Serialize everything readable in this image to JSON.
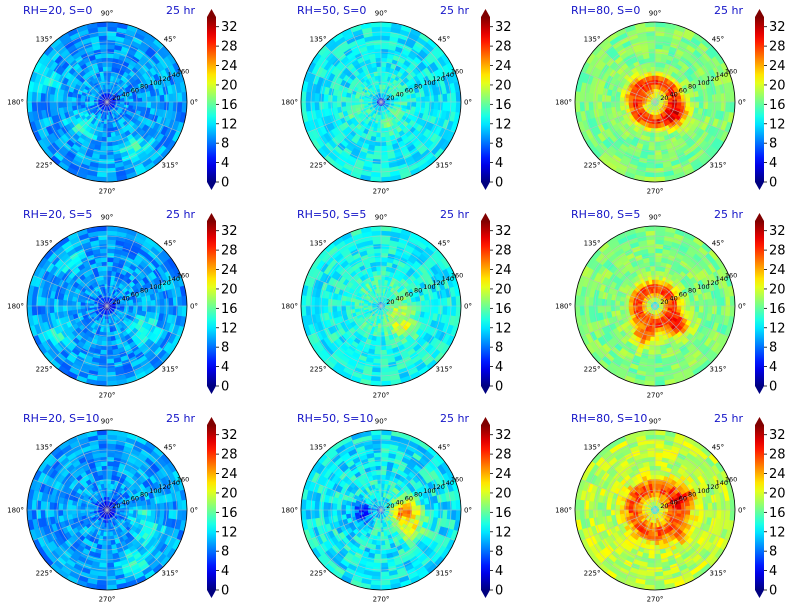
{
  "colors": {
    "title": "#1515c8",
    "colormap": "jet",
    "grid": "#bfbfbf"
  },
  "figure_info": {
    "time_label": "25 hr"
  },
  "chart_data": [
    {
      "type": "heatmap",
      "title": "RH=20, S=0",
      "time": "25 hr",
      "projection": "polar",
      "grid": true,
      "angle_ticks": [
        "90°",
        "45°",
        "0°",
        "315°",
        "270°",
        "225°",
        "180°",
        "135°"
      ],
      "radial_ticks": [
        20,
        40,
        60,
        80,
        100,
        120,
        140,
        160
      ],
      "rlim": [
        0,
        160
      ],
      "colorbar": {
        "ticks": [
          0,
          4,
          8,
          12,
          16,
          20,
          24,
          28,
          32
        ],
        "range": [
          0,
          34
        ]
      },
      "field": {
        "background": 9.5,
        "noise": 2.5,
        "center_value": 2,
        "center_radius": 22,
        "ring_value": 9.5,
        "ring_radius": 50,
        "ring_width": 30,
        "hotspots": [
          {
            "r": 70,
            "theta": 225,
            "value": 14
          },
          {
            "r": 110,
            "theta": 300,
            "value": 15
          },
          {
            "r": 130,
            "theta": 160,
            "value": 14
          }
        ]
      }
    },
    {
      "type": "heatmap",
      "title": "RH=50, S=0",
      "time": "25 hr",
      "projection": "polar",
      "grid": true,
      "angle_ticks": [
        "90°",
        "45°",
        "0°",
        "315°",
        "270°",
        "225°",
        "180°",
        "135°"
      ],
      "radial_ticks": [
        20,
        40,
        60,
        80,
        100,
        120,
        140,
        160
      ],
      "rlim": [
        0,
        160
      ],
      "colorbar": {
        "ticks": [
          0,
          4,
          8,
          12,
          16,
          20,
          24,
          28,
          32
        ],
        "range": [
          0,
          34
        ]
      },
      "field": {
        "background": 12.5,
        "noise": 2.5,
        "center_value": 3,
        "center_radius": 14,
        "ring_value": 14,
        "ring_radius": 40,
        "ring_width": 25,
        "hotspots": [
          {
            "r": 60,
            "theta": 200,
            "value": 15
          },
          {
            "r": 45,
            "theta": 300,
            "value": 16
          }
        ]
      }
    },
    {
      "type": "heatmap",
      "title": "RH=80, S=0",
      "time": "25 hr",
      "projection": "polar",
      "grid": true,
      "angle_ticks": [
        "90°",
        "45°",
        "0°",
        "315°",
        "270°",
        "225°",
        "180°",
        "135°"
      ],
      "radial_ticks": [
        20,
        40,
        60,
        80,
        100,
        120,
        140,
        160
      ],
      "rlim": [
        0,
        160
      ],
      "colorbar": {
        "ticks": [
          0,
          4,
          8,
          12,
          16,
          20,
          24,
          28,
          32
        ],
        "range": [
          0,
          34
        ]
      },
      "field": {
        "background": 17,
        "noise": 2,
        "center_value": 13,
        "center_radius": 12,
        "ring_value": 29,
        "ring_radius": 40,
        "ring_width": 22,
        "hotspots": [
          {
            "r": 45,
            "theta": 330,
            "value": 31
          },
          {
            "r": 35,
            "theta": 150,
            "value": 28
          }
        ]
      }
    },
    {
      "type": "heatmap",
      "title": "RH=20, S=5",
      "time": "25 hr",
      "projection": "polar",
      "grid": true,
      "angle_ticks": [
        "90°",
        "45°",
        "0°",
        "315°",
        "270°",
        "225°",
        "180°",
        "135°"
      ],
      "radial_ticks": [
        20,
        40,
        60,
        80,
        100,
        120,
        140,
        160
      ],
      "rlim": [
        0,
        160
      ],
      "colorbar": {
        "ticks": [
          0,
          4,
          8,
          12,
          16,
          20,
          24,
          28,
          32
        ],
        "range": [
          0,
          34
        ]
      },
      "field": {
        "background": 9.5,
        "noise": 2.5,
        "center_value": 2,
        "center_radius": 22,
        "ring_value": 9.5,
        "ring_radius": 50,
        "ring_width": 30,
        "hotspots": [
          {
            "r": 110,
            "theta": 210,
            "value": 14
          },
          {
            "r": 90,
            "theta": 330,
            "value": 14
          },
          {
            "r": 120,
            "theta": 130,
            "value": 13
          }
        ]
      }
    },
    {
      "type": "heatmap",
      "title": "RH=50, S=5",
      "time": "25 hr",
      "projection": "polar",
      "grid": true,
      "angle_ticks": [
        "90°",
        "45°",
        "0°",
        "315°",
        "270°",
        "225°",
        "180°",
        "135°"
      ],
      "radial_ticks": [
        20,
        40,
        60,
        80,
        100,
        120,
        140,
        160
      ],
      "rlim": [
        0,
        160
      ],
      "colorbar": {
        "ticks": [
          0,
          4,
          8,
          12,
          16,
          20,
          24,
          28,
          32
        ],
        "range": [
          0,
          34
        ]
      },
      "field": {
        "background": 13,
        "noise": 2.5,
        "center_value": 9,
        "center_radius": 12,
        "ring_value": 15,
        "ring_radius": 45,
        "ring_width": 30,
        "hotspots": [
          {
            "r": 60,
            "theta": 320,
            "value": 21
          },
          {
            "r": 40,
            "theta": 340,
            "value": 19
          }
        ]
      }
    },
    {
      "type": "heatmap",
      "title": "RH=80, S=5",
      "time": "25 hr",
      "projection": "polar",
      "grid": true,
      "angle_ticks": [
        "90°",
        "45°",
        "0°",
        "315°",
        "270°",
        "225°",
        "180°",
        "135°"
      ],
      "radial_ticks": [
        20,
        40,
        60,
        80,
        100,
        120,
        140,
        160
      ],
      "rlim": [
        0,
        160
      ],
      "colorbar": {
        "ticks": [
          0,
          4,
          8,
          12,
          16,
          20,
          24,
          28,
          32
        ],
        "range": [
          0,
          34
        ]
      },
      "field": {
        "background": 17,
        "noise": 2,
        "center_value": 12,
        "center_radius": 10,
        "ring_value": 28,
        "ring_radius": 35,
        "ring_width": 25,
        "hotspots": [
          {
            "r": 55,
            "theta": 320,
            "value": 30
          },
          {
            "r": 60,
            "theta": 250,
            "value": 27
          }
        ]
      }
    },
    {
      "type": "heatmap",
      "title": "RH=20, S=10",
      "time": "25 hr",
      "projection": "polar",
      "grid": true,
      "angle_ticks": [
        "90°",
        "45°",
        "0°",
        "315°",
        "270°",
        "225°",
        "180°",
        "135°"
      ],
      "radial_ticks": [
        20,
        40,
        60,
        80,
        100,
        120,
        140,
        160
      ],
      "rlim": [
        0,
        160
      ],
      "colorbar": {
        "ticks": [
          0,
          4,
          8,
          12,
          16,
          20,
          24,
          28,
          32
        ],
        "range": [
          0,
          34
        ]
      },
      "field": {
        "background": 9.5,
        "noise": 2.5,
        "center_value": 2,
        "center_radius": 25,
        "ring_value": 9.5,
        "ring_radius": 50,
        "ring_width": 30,
        "hotspots": [
          {
            "r": 100,
            "theta": 330,
            "value": 14
          },
          {
            "r": 120,
            "theta": 300,
            "value": 15
          },
          {
            "r": 80,
            "theta": 350,
            "value": 14
          }
        ]
      }
    },
    {
      "type": "heatmap",
      "title": "RH=50, S=10",
      "time": "25 hr",
      "projection": "polar",
      "grid": true,
      "angle_ticks": [
        "90°",
        "45°",
        "0°",
        "315°",
        "270°",
        "225°",
        "180°",
        "135°"
      ],
      "radial_ticks": [
        20,
        40,
        60,
        80,
        100,
        120,
        140,
        160
      ],
      "rlim": [
        0,
        160
      ],
      "colorbar": {
        "ticks": [
          0,
          4,
          8,
          12,
          16,
          20,
          24,
          28,
          32
        ],
        "range": [
          0,
          34
        ]
      },
      "field": {
        "background": 12.5,
        "noise": 3,
        "center_value": 8,
        "center_radius": 12,
        "ring_value": 14,
        "ring_radius": 45,
        "ring_width": 30,
        "hotspots": [
          {
            "r": 50,
            "theta": 355,
            "value": 27
          },
          {
            "r": 70,
            "theta": 330,
            "value": 21
          },
          {
            "r": 40,
            "theta": 190,
            "value": 6
          }
        ]
      }
    },
    {
      "type": "heatmap",
      "title": "RH=80, S=10",
      "time": "25 hr",
      "projection": "polar",
      "grid": true,
      "angle_ticks": [
        "90°",
        "45°",
        "0°",
        "315°",
        "270°",
        "225°",
        "180°",
        "135°"
      ],
      "radial_ticks": [
        20,
        40,
        60,
        80,
        100,
        120,
        140,
        160
      ],
      "rlim": [
        0,
        160
      ],
      "colorbar": {
        "ticks": [
          0,
          4,
          8,
          12,
          16,
          20,
          24,
          28,
          32
        ],
        "range": [
          0,
          34
        ]
      },
      "field": {
        "background": 19,
        "noise": 2.5,
        "center_value": 12,
        "center_radius": 10,
        "ring_value": 27,
        "ring_radius": 45,
        "ring_width": 30,
        "hotspots": [
          {
            "r": 55,
            "theta": 20,
            "value": 30
          },
          {
            "r": 60,
            "theta": 320,
            "value": 27
          }
        ]
      }
    }
  ]
}
